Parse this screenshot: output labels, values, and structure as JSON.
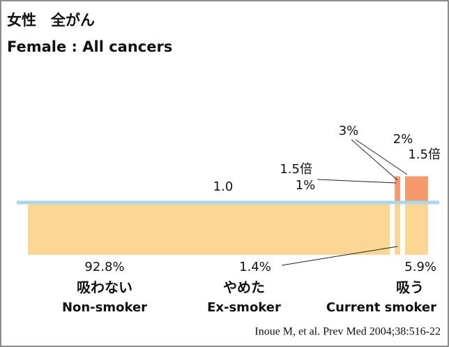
{
  "chart_data": {
    "type": "mekko",
    "title": "女性　全がん",
    "subtitle": "Female : All cancers",
    "source": "Inoue M, et al. Prev Med 2004;38:516-22",
    "categories": [
      "吸わない",
      "やめた",
      "吸う"
    ],
    "categories_en": [
      "Non-smoker",
      "Ex-smoker",
      "Current smoker"
    ],
    "shares": [
      92.8,
      1.4,
      5.9
    ],
    "share_labels": [
      "92.8%",
      "1.4%",
      "5.9%"
    ],
    "values": [
      1.0,
      1.5,
      1.5
    ],
    "value_labels": [
      "1.0",
      "1.5倍",
      "1.5倍"
    ],
    "attributable": [
      null,
      1,
      2
    ],
    "attributable_labels": [
      null,
      "1%",
      "2%"
    ],
    "total_attributable": 3,
    "total_attributable_label": "3%",
    "ylim": [
      0,
      1.5
    ],
    "baseline": 1,
    "colors": {
      "base": "#fcd692",
      "excess": "#f59a6c",
      "baseline": "#a9d8ee"
    }
  }
}
